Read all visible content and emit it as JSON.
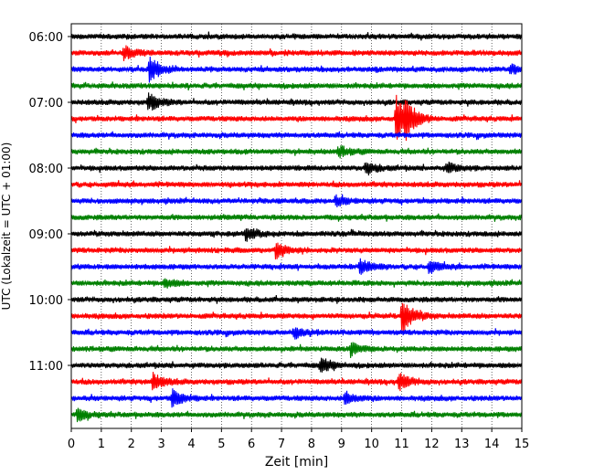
{
  "chart_data": {
    "type": "line",
    "xlabel": "Zeit  [min]",
    "ylabel": "UTC (Lokalzeit = UTC + 01:00)",
    "xlim": [
      0,
      15
    ],
    "x_ticks": [
      0,
      1,
      2,
      3,
      4,
      5,
      6,
      7,
      8,
      9,
      10,
      11,
      12,
      13,
      14,
      15
    ],
    "grid": "vertical dotted",
    "trace_interval_minutes": 15,
    "first_trace_utc": "06:00",
    "y_tick_labels": [
      "06:00",
      "07:00",
      "08:00",
      "09:00",
      "10:00",
      "11:00"
    ],
    "trace_colors": [
      "#000000",
      "#ff0000",
      "#0000ff",
      "#008000"
    ],
    "traces": [
      {
        "start": "06:00",
        "events": []
      },
      {
        "start": "06:15",
        "events": [
          {
            "t": 1.75,
            "amp": 0.45
          }
        ]
      },
      {
        "start": "06:30",
        "events": [
          {
            "t": 2.6,
            "amp": 0.9
          },
          {
            "t": 14.6,
            "amp": 0.3
          }
        ]
      },
      {
        "start": "06:45",
        "events": []
      },
      {
        "start": "07:00",
        "events": [
          {
            "t": 2.55,
            "amp": 0.6
          }
        ]
      },
      {
        "start": "07:15",
        "events": [
          {
            "t": 10.8,
            "amp": 1.6
          },
          {
            "t": 11.1,
            "amp": 1.0
          }
        ]
      },
      {
        "start": "07:30",
        "events": []
      },
      {
        "start": "07:45",
        "events": [
          {
            "t": 8.9,
            "amp": 0.35
          }
        ]
      },
      {
        "start": "08:00",
        "events": [
          {
            "t": 9.8,
            "amp": 0.45
          },
          {
            "t": 12.5,
            "amp": 0.35
          }
        ]
      },
      {
        "start": "08:15",
        "events": []
      },
      {
        "start": "08:30",
        "events": [
          {
            "t": 8.8,
            "amp": 0.35
          }
        ]
      },
      {
        "start": "08:45",
        "events": []
      },
      {
        "start": "09:00",
        "events": [
          {
            "t": 5.8,
            "amp": 0.5
          }
        ]
      },
      {
        "start": "09:15",
        "events": [
          {
            "t": 6.8,
            "amp": 0.5
          }
        ]
      },
      {
        "start": "09:30",
        "events": [
          {
            "t": 9.6,
            "amp": 0.55
          },
          {
            "t": 11.9,
            "amp": 0.4
          }
        ]
      },
      {
        "start": "09:45",
        "events": [
          {
            "t": 3.1,
            "amp": 0.3
          }
        ]
      },
      {
        "start": "10:00",
        "events": []
      },
      {
        "start": "10:15",
        "events": [
          {
            "t": 11.0,
            "amp": 1.3
          }
        ]
      },
      {
        "start": "10:30",
        "events": [
          {
            "t": 7.4,
            "amp": 0.35
          }
        ]
      },
      {
        "start": "10:45",
        "events": [
          {
            "t": 9.3,
            "amp": 0.45
          }
        ]
      },
      {
        "start": "11:00",
        "events": [
          {
            "t": 8.3,
            "amp": 0.5
          }
        ]
      },
      {
        "start": "11:15",
        "events": [
          {
            "t": 2.7,
            "amp": 0.6
          },
          {
            "t": 10.9,
            "amp": 0.6
          }
        ]
      },
      {
        "start": "11:30",
        "events": [
          {
            "t": 3.35,
            "amp": 0.6
          },
          {
            "t": 9.1,
            "amp": 0.45
          }
        ]
      },
      {
        "start": "11:45",
        "events": [
          {
            "t": 0.2,
            "amp": 0.4
          }
        ]
      }
    ]
  }
}
